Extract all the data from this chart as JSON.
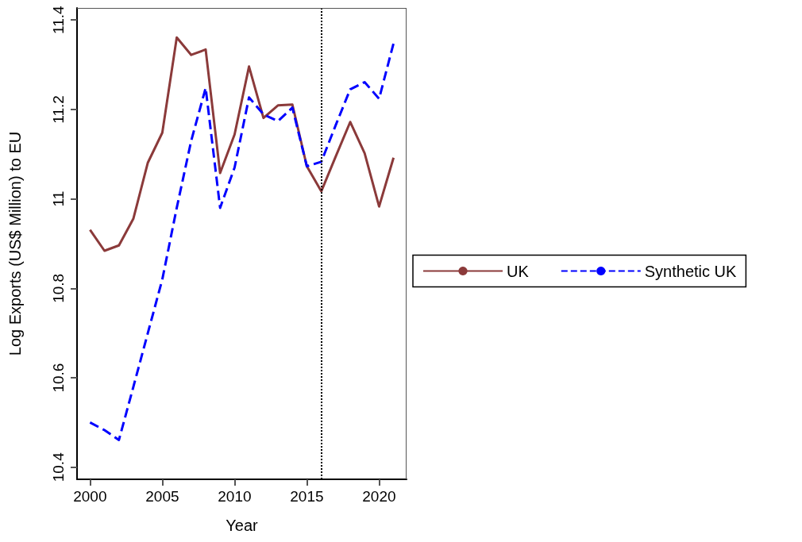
{
  "chart_data": {
    "type": "line",
    "xlabel": "Year",
    "ylabel": "Log Exports (US$ Million) to EU",
    "x": [
      2000,
      2001,
      2002,
      2003,
      2004,
      2005,
      2006,
      2007,
      2008,
      2009,
      2010,
      2011,
      2012,
      2013,
      2014,
      2015,
      2016,
      2017,
      2018,
      2019,
      2020,
      2021
    ],
    "series": [
      {
        "name": "UK",
        "color": "#8b3a3a",
        "line_style": "solid",
        "values": [
          10.931,
          10.884,
          10.896,
          10.956,
          11.081,
          11.148,
          11.361,
          11.322,
          11.334,
          11.058,
          11.144,
          11.296,
          11.181,
          11.209,
          11.211,
          11.073,
          11.017,
          11.095,
          11.172,
          11.102,
          10.983,
          11.092
        ]
      },
      {
        "name": "Synthetic UK",
        "color": "#0000ff",
        "line_style": "dashed",
        "values": [
          10.5,
          10.483,
          10.461,
          10.58,
          10.7,
          10.82,
          10.98,
          11.13,
          11.248,
          10.98,
          11.07,
          11.227,
          11.189,
          11.174,
          11.204,
          11.073,
          11.083,
          11.165,
          11.245,
          11.261,
          11.224,
          11.348
        ]
      }
    ],
    "xlim": [
      1999.1,
      2021.9
    ],
    "xticks": [
      2000,
      2005,
      2010,
      2015,
      2020
    ],
    "ylim": [
      10.373,
      11.427
    ],
    "yticks": [
      {
        "value": 10.4,
        "label": "10.4"
      },
      {
        "value": 10.6,
        "label": "10.6"
      },
      {
        "value": 10.8,
        "label": "10.8"
      },
      11,
      {
        "value": 11.2,
        "label": "11.2"
      },
      {
        "value": 11.4,
        "label": "11.4"
      }
    ],
    "ref_lines": [
      {
        "axis": "x",
        "value": 2016,
        "color": "#000000",
        "line_style": "dotted"
      }
    ],
    "legend": "right",
    "grid": false,
    "marker": "none"
  }
}
